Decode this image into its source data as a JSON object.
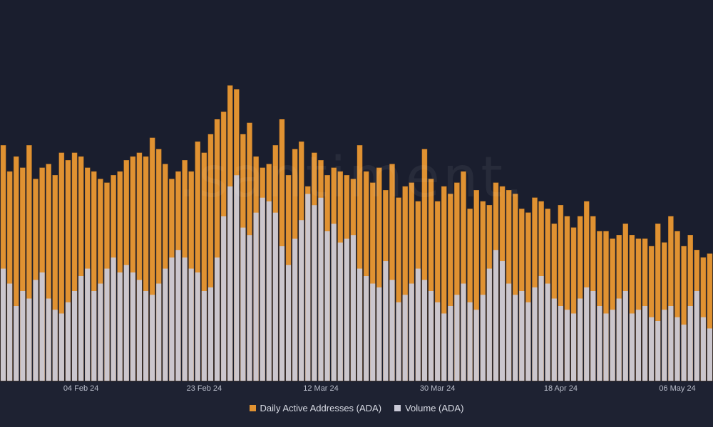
{
  "colors": {
    "background": "#1a1e2e",
    "bottom_band": "#1e2232",
    "addresses": "#e09232",
    "addresses_edge": "#b97320",
    "volume": "#c9c9d6",
    "tick_text": "#b9bdca"
  },
  "watermark": ".santiment.",
  "legend": {
    "addresses_label": "Daily Active Addresses (ADA)",
    "volume_label": "Volume (ADA)"
  },
  "chart_data": {
    "type": "bar",
    "start_date": "2024-01-23",
    "interval": "daily",
    "x_ticks": [
      "04 Feb 24",
      "23 Feb 24",
      "12 Mar 24",
      "30 Mar 24",
      "18 Apr 24",
      "06 May 24"
    ],
    "legend_position": "bottom-center",
    "grid": false,
    "series": [
      {
        "name": "Daily Active Addresses (ADA)",
        "type": "bar",
        "values": [
          63,
          56,
          60,
          57,
          63,
          54,
          57,
          58,
          55,
          61,
          59,
          61,
          60,
          57,
          56,
          54,
          53,
          55,
          56,
          59,
          60,
          61,
          60,
          65,
          62,
          58,
          54,
          56,
          59,
          56,
          64,
          61,
          66,
          70,
          72,
          79,
          78,
          66,
          69,
          60,
          57,
          58,
          63,
          70,
          55,
          62,
          64,
          52,
          61,
          59,
          55,
          57,
          56,
          55,
          54,
          63,
          56,
          53,
          57,
          51,
          58,
          49,
          52,
          53,
          48,
          62,
          54,
          48,
          52,
          50,
          53,
          56,
          46,
          51,
          48,
          47,
          53,
          52,
          51,
          50,
          46,
          45,
          49,
          48,
          46,
          42,
          47,
          44,
          41,
          44,
          48,
          44,
          40,
          40,
          38,
          39,
          42,
          39,
          38,
          38,
          36,
          42,
          37,
          44,
          40,
          36,
          39,
          35,
          33,
          34
        ]
      },
      {
        "name": "Volume (ADA)",
        "type": "bar",
        "values": [
          30,
          26,
          20,
          24,
          22,
          27,
          29,
          22,
          19,
          18,
          21,
          24,
          28,
          30,
          24,
          26,
          30,
          33,
          29,
          31,
          29,
          27,
          24,
          23,
          26,
          30,
          33,
          35,
          33,
          30,
          29,
          24,
          25,
          33,
          44,
          52,
          55,
          41,
          39,
          45,
          49,
          48,
          45,
          36,
          31,
          38,
          43,
          50,
          47,
          49,
          40,
          42,
          37,
          38,
          39,
          30,
          28,
          26,
          25,
          32,
          27,
          21,
          23,
          26,
          30,
          27,
          24,
          21,
          18,
          20,
          23,
          26,
          21,
          19,
          23,
          30,
          35,
          32,
          26,
          23,
          24,
          21,
          25,
          28,
          26,
          22,
          20,
          19,
          18,
          22,
          25,
          24,
          20,
          18,
          19,
          22,
          24,
          18,
          19,
          20,
          17,
          16,
          19,
          20,
          17,
          15,
          20,
          24,
          17,
          14
        ]
      }
    ]
  }
}
